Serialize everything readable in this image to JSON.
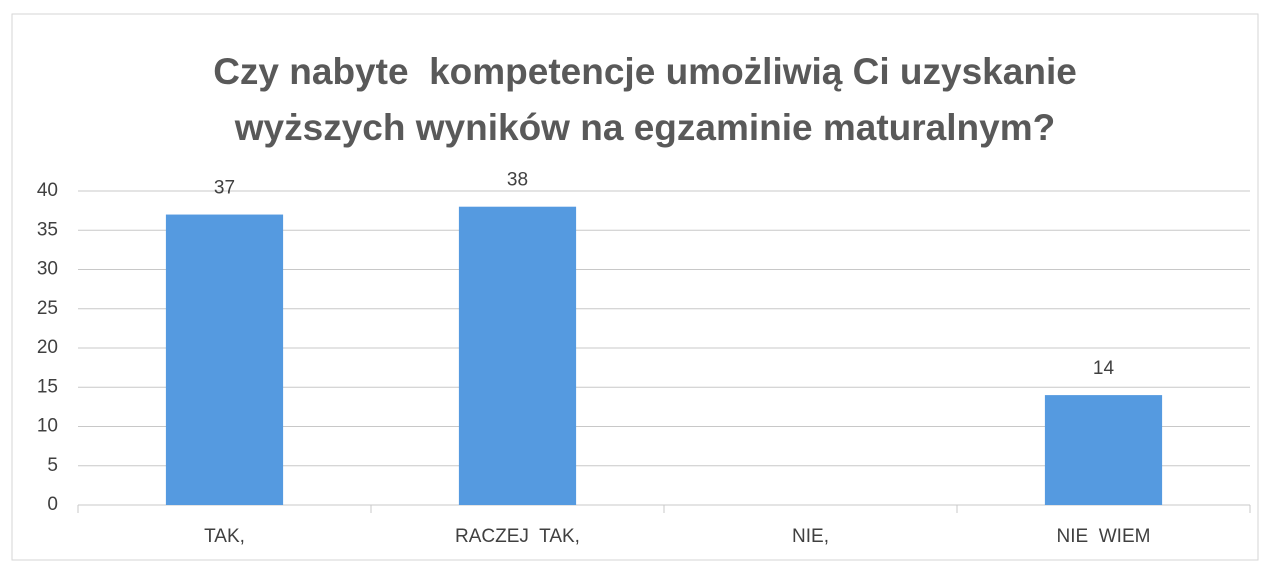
{
  "chart_data": {
    "type": "bar",
    "title": [
      "Czy nabyte  kompetencje umożliwią Ci uzyskanie",
      "wyższych wyników na egzaminie maturalnym?"
    ],
    "categories": [
      "TAK,",
      "RACZEJ  TAK,",
      "NIE,",
      "NIE  WIEM"
    ],
    "values": [
      37,
      38,
      null,
      14
    ],
    "color": "#559ae0",
    "ylim": [
      0,
      40
    ],
    "yticks": [
      0,
      5,
      10,
      15,
      20,
      25,
      30,
      35,
      40
    ],
    "grid": true
  }
}
